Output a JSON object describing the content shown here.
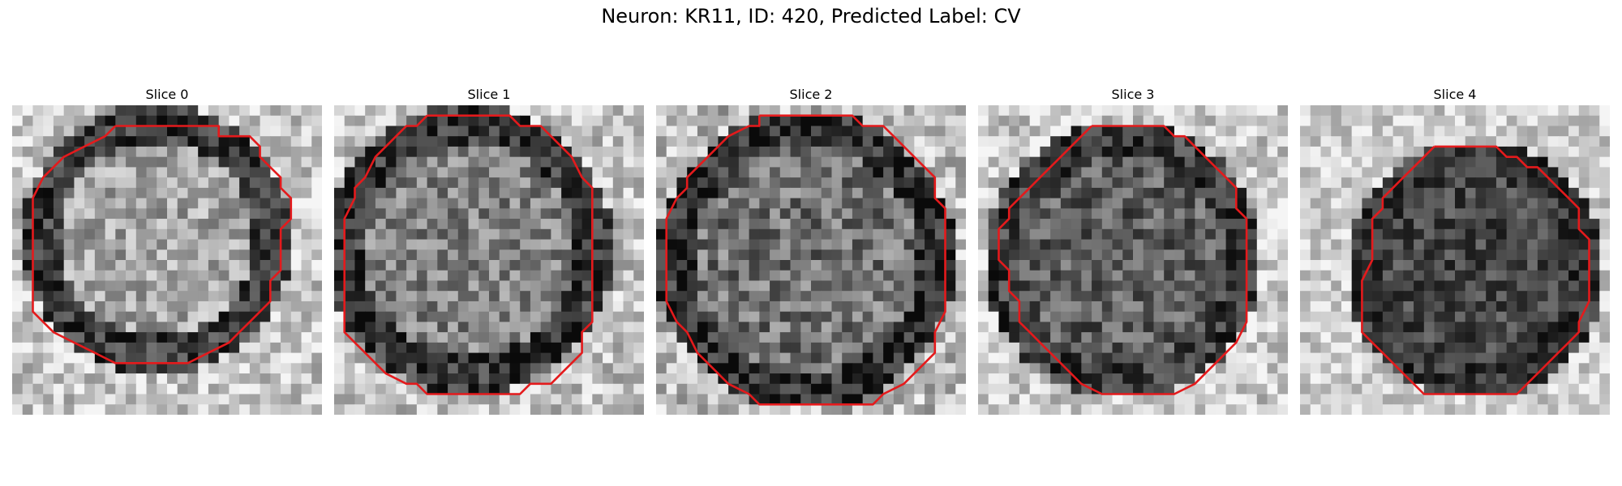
{
  "figure": {
    "title": "Neuron: KR11, ID: 420, Predicted Label: CV"
  },
  "panels": [
    {
      "title": "Slice 0"
    },
    {
      "title": "Slice 1"
    },
    {
      "title": "Slice 2"
    },
    {
      "title": "Slice 3"
    },
    {
      "title": "Slice 4"
    }
  ],
  "colors": {
    "background": "#ffffff",
    "contour": "#e41a1c",
    "colormap": "gray"
  },
  "image_grid": {
    "rows": 30,
    "cols": 30
  },
  "contours": [
    [
      [
        10,
        2
      ],
      [
        20,
        2
      ],
      [
        20,
        3
      ],
      [
        23,
        3
      ],
      [
        24,
        4
      ],
      [
        24,
        5
      ],
      [
        25,
        6
      ],
      [
        26,
        7
      ],
      [
        26,
        8
      ],
      [
        27,
        9
      ],
      [
        27,
        11
      ],
      [
        26,
        12
      ],
      [
        26,
        13
      ],
      [
        26,
        15
      ],
      [
        26,
        16
      ],
      [
        25,
        17
      ],
      [
        25,
        19
      ],
      [
        24,
        20
      ],
      [
        23,
        21
      ],
      [
        22,
        22
      ],
      [
        21,
        23
      ],
      [
        19,
        24
      ],
      [
        17,
        25
      ],
      [
        10,
        25
      ],
      [
        8,
        24
      ],
      [
        6,
        23
      ],
      [
        4,
        22
      ],
      [
        3,
        21
      ],
      [
        2,
        20
      ],
      [
        2,
        18
      ],
      [
        2,
        15
      ],
      [
        2,
        12
      ],
      [
        2,
        9
      ],
      [
        3,
        7
      ],
      [
        4,
        6
      ],
      [
        5,
        5
      ],
      [
        7,
        4
      ],
      [
        9,
        3
      ],
      [
        10,
        2
      ]
    ],
    [
      [
        9,
        1
      ],
      [
        17,
        1
      ],
      [
        18,
        2
      ],
      [
        20,
        2
      ],
      [
        21,
        3
      ],
      [
        22,
        4
      ],
      [
        23,
        5
      ],
      [
        24,
        7
      ],
      [
        25,
        8
      ],
      [
        25,
        9
      ],
      [
        25,
        12
      ],
      [
        25,
        15
      ],
      [
        25,
        18
      ],
      [
        25,
        21
      ],
      [
        24,
        22
      ],
      [
        24,
        24
      ],
      [
        23,
        25
      ],
      [
        22,
        26
      ],
      [
        21,
        27
      ],
      [
        19,
        27
      ],
      [
        18,
        28
      ],
      [
        16,
        28
      ],
      [
        9,
        28
      ],
      [
        8,
        27
      ],
      [
        7,
        27
      ],
      [
        5,
        26
      ],
      [
        4,
        25
      ],
      [
        3,
        24
      ],
      [
        2,
        23
      ],
      [
        1,
        22
      ],
      [
        1,
        20
      ],
      [
        1,
        17
      ],
      [
        1,
        14
      ],
      [
        1,
        11
      ],
      [
        2,
        9
      ],
      [
        2,
        8
      ],
      [
        3,
        7
      ],
      [
        4,
        5
      ],
      [
        5,
        4
      ],
      [
        6,
        3
      ],
      [
        7,
        2
      ],
      [
        8,
        2
      ],
      [
        9,
        1
      ]
    ],
    [
      [
        10,
        1
      ],
      [
        19,
        1
      ],
      [
        20,
        2
      ],
      [
        22,
        2
      ],
      [
        23,
        3
      ],
      [
        24,
        4
      ],
      [
        25,
        5
      ],
      [
        26,
        6
      ],
      [
        27,
        7
      ],
      [
        27,
        9
      ],
      [
        28,
        10
      ],
      [
        28,
        12
      ],
      [
        28,
        15
      ],
      [
        28,
        18
      ],
      [
        28,
        20
      ],
      [
        27,
        22
      ],
      [
        27,
        24
      ],
      [
        26,
        25
      ],
      [
        25,
        26
      ],
      [
        24,
        27
      ],
      [
        22,
        28
      ],
      [
        21,
        29
      ],
      [
        10,
        29
      ],
      [
        9,
        28
      ],
      [
        7,
        27
      ],
      [
        6,
        26
      ],
      [
        5,
        25
      ],
      [
        4,
        24
      ],
      [
        3,
        22
      ],
      [
        2,
        21
      ],
      [
        1,
        19
      ],
      [
        1,
        16
      ],
      [
        1,
        13
      ],
      [
        1,
        11
      ],
      [
        2,
        9
      ],
      [
        3,
        8
      ],
      [
        3,
        7
      ],
      [
        4,
        6
      ],
      [
        5,
        5
      ],
      [
        6,
        4
      ],
      [
        7,
        3
      ],
      [
        9,
        2
      ],
      [
        10,
        2
      ],
      [
        10,
        1
      ]
    ],
    [
      [
        11,
        2
      ],
      [
        18,
        2
      ],
      [
        19,
        3
      ],
      [
        20,
        3
      ],
      [
        21,
        4
      ],
      [
        22,
        5
      ],
      [
        23,
        6
      ],
      [
        24,
        7
      ],
      [
        25,
        8
      ],
      [
        25,
        10
      ],
      [
        26,
        11
      ],
      [
        26,
        13
      ],
      [
        26,
        16
      ],
      [
        26,
        19
      ],
      [
        26,
        21
      ],
      [
        25,
        23
      ],
      [
        24,
        24
      ],
      [
        23,
        25
      ],
      [
        22,
        26
      ],
      [
        21,
        27
      ],
      [
        19,
        28
      ],
      [
        12,
        28
      ],
      [
        10,
        27
      ],
      [
        9,
        26
      ],
      [
        8,
        25
      ],
      [
        7,
        24
      ],
      [
        6,
        23
      ],
      [
        5,
        22
      ],
      [
        4,
        21
      ],
      [
        4,
        19
      ],
      [
        3,
        18
      ],
      [
        3,
        16
      ],
      [
        2,
        15
      ],
      [
        2,
        14
      ],
      [
        2,
        13
      ],
      [
        2,
        12
      ],
      [
        3,
        11
      ],
      [
        3,
        10
      ],
      [
        4,
        9
      ],
      [
        5,
        8
      ],
      [
        6,
        7
      ],
      [
        7,
        6
      ],
      [
        8,
        5
      ],
      [
        9,
        4
      ],
      [
        10,
        3
      ],
      [
        11,
        2
      ]
    ],
    [
      [
        13,
        4
      ],
      [
        19,
        4
      ],
      [
        20,
        5
      ],
      [
        21,
        5
      ],
      [
        22,
        6
      ],
      [
        23,
        6
      ],
      [
        24,
        7
      ],
      [
        25,
        8
      ],
      [
        26,
        9
      ],
      [
        27,
        10
      ],
      [
        27,
        12
      ],
      [
        28,
        13
      ],
      [
        28,
        16
      ],
      [
        28,
        19
      ],
      [
        27,
        21
      ],
      [
        27,
        22
      ],
      [
        26,
        23
      ],
      [
        25,
        24
      ],
      [
        24,
        25
      ],
      [
        23,
        26
      ],
      [
        22,
        27
      ],
      [
        21,
        28
      ],
      [
        12,
        28
      ],
      [
        11,
        27
      ],
      [
        10,
        26
      ],
      [
        9,
        25
      ],
      [
        8,
        24
      ],
      [
        7,
        23
      ],
      [
        6,
        22
      ],
      [
        6,
        20
      ],
      [
        6,
        17
      ],
      [
        7,
        15
      ],
      [
        7,
        13
      ],
      [
        7,
        11
      ],
      [
        8,
        10
      ],
      [
        8,
        9
      ],
      [
        9,
        8
      ],
      [
        10,
        7
      ],
      [
        11,
        6
      ],
      [
        12,
        5
      ],
      [
        13,
        4
      ]
    ]
  ]
}
